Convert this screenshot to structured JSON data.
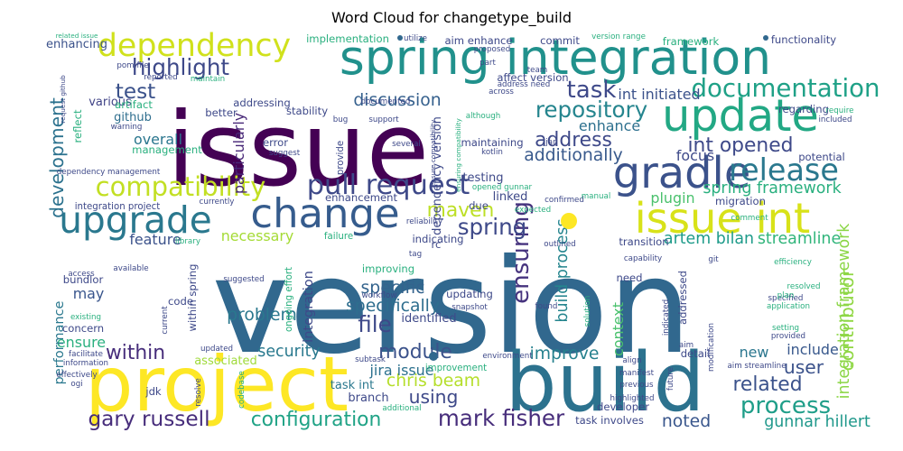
{
  "title": "Word Cloud for changetype_build",
  "chart_data": {
    "type": "wordcloud",
    "title": "Word Cloud for changetype_build",
    "colormap": "viridis",
    "background": "#ffffff",
    "words": [
      {
        "text": "version",
        "size": 100,
        "color": "#31688e"
      },
      {
        "text": "issue",
        "size": 78,
        "color": "#440154"
      },
      {
        "text": "build",
        "size": 62,
        "color": "#2c728e"
      },
      {
        "text": "project",
        "size": 58,
        "color": "#fde725"
      },
      {
        "text": "spring integration",
        "size": 37,
        "color": "#21918c"
      },
      {
        "text": "update",
        "size": 34,
        "color": "#22a884"
      },
      {
        "text": "gradle",
        "size": 33,
        "color": "#3b528b"
      },
      {
        "text": "issue int",
        "size": 32,
        "color": "#d8e219"
      },
      {
        "text": "change",
        "size": 31,
        "color": "#365c8d"
      },
      {
        "text": "upgrade",
        "size": 28,
        "color": "#2a788e"
      },
      {
        "text": "dependency",
        "size": 24,
        "color": "#d0e11c"
      },
      {
        "text": "release",
        "size": 23,
        "color": "#2a788e"
      },
      {
        "text": "pull request",
        "size": 21,
        "color": "#3e4989"
      },
      {
        "text": "compatibility",
        "size": 20,
        "color": "#c2df23"
      },
      {
        "text": "documentation",
        "size": 19,
        "color": "#1fa187"
      },
      {
        "text": "ensuring",
        "size": 18,
        "color": "#46337e"
      },
      {
        "text": "process",
        "size": 18,
        "color": "#1f9e89"
      },
      {
        "text": "task",
        "size": 18,
        "color": "#3e4989"
      },
      {
        "text": "highlight",
        "size": 17,
        "color": "#3e4989"
      },
      {
        "text": "repository",
        "size": 17,
        "color": "#25858e"
      },
      {
        "text": "spring",
        "size": 17,
        "color": "#3e4989"
      },
      {
        "text": "file",
        "size": 17,
        "color": "#3e4989"
      },
      {
        "text": "mark fisher",
        "size": 17,
        "color": "#472d7b"
      },
      {
        "text": "gary russell",
        "size": 16,
        "color": "#472d7b"
      },
      {
        "text": "test",
        "size": 16,
        "color": "#3b528b"
      },
      {
        "text": "int opened",
        "size": 15,
        "color": "#3e4989"
      },
      {
        "text": "within",
        "size": 15,
        "color": "#472d7b"
      },
      {
        "text": "module",
        "size": 15,
        "color": "#3b528b"
      },
      {
        "text": "configuration",
        "size": 15,
        "color": "#20a386"
      },
      {
        "text": "related",
        "size": 15,
        "color": "#3b528b"
      },
      {
        "text": "maven",
        "size": 15,
        "color": "#bddf26"
      },
      {
        "text": "address",
        "size": 15,
        "color": "#3e4989"
      },
      {
        "text": "development",
        "size": 14,
        "color": "#2c728e"
      },
      {
        "text": "contributor",
        "size": 14,
        "color": "#90d743"
      },
      {
        "text": "user",
        "size": 14,
        "color": "#3b528b"
      },
      {
        "text": "using",
        "size": 14,
        "color": "#3e4989"
      },
      {
        "text": "chris beam",
        "size": 13,
        "color": "#b5de2b"
      },
      {
        "text": "specific",
        "size": 13,
        "color": "#33638d"
      },
      {
        "text": "specifically",
        "size": 13,
        "color": "#2e6e8e"
      },
      {
        "text": "problem",
        "size": 13,
        "color": "#2a788e"
      },
      {
        "text": "discussion",
        "size": 13,
        "color": "#35608d"
      },
      {
        "text": "additionally",
        "size": 13,
        "color": "#38598c"
      },
      {
        "text": "improve",
        "size": 13,
        "color": "#26818e"
      },
      {
        "text": "noted",
        "size": 13,
        "color": "#39568c"
      },
      {
        "text": "gunnar hillert",
        "size": 12,
        "color": "#1f988b"
      },
      {
        "text": "spring framework",
        "size": 12,
        "color": "#2ab07f"
      },
      {
        "text": "artem bilan",
        "size": 12,
        "color": "#1e9b8a"
      },
      {
        "text": "streamline",
        "size": 12,
        "color": "#31b57b"
      },
      {
        "text": "integration framework",
        "size": 12,
        "color": "#8bd646"
      },
      {
        "text": "build process",
        "size": 12,
        "color": "#25858e"
      },
      {
        "text": "security",
        "size": 12,
        "color": "#29798e"
      },
      {
        "text": "jira issue",
        "size": 11,
        "color": "#2c718e"
      },
      {
        "text": "int initiated",
        "size": 11,
        "color": "#3b528b"
      },
      {
        "text": "enhance",
        "size": 11,
        "color": "#2d708e"
      },
      {
        "text": "overall",
        "size": 11,
        "color": "#2a768e"
      },
      {
        "text": "particularly",
        "size": 11,
        "color": "#482878"
      },
      {
        "text": "focus",
        "size": 11,
        "color": "#3e4a89"
      },
      {
        "text": "context",
        "size": 11,
        "color": "#4ac16d"
      },
      {
        "text": "include",
        "size": 11,
        "color": "#38588c"
      },
      {
        "text": "new",
        "size": 11,
        "color": "#2a768e"
      },
      {
        "text": "may",
        "size": 11,
        "color": "#39558c"
      },
      {
        "text": "feature",
        "size": 11,
        "color": "#3b528b"
      },
      {
        "text": "necessary",
        "size": 11,
        "color": "#a5db36"
      },
      {
        "text": "plugin",
        "size": 11,
        "color": "#4ac16d"
      },
      {
        "text": "ensure",
        "size": 11,
        "color": "#2ab07f"
      },
      {
        "text": "performance",
        "size": 10,
        "color": "#2a788e"
      },
      {
        "text": "integration",
        "size": 10,
        "color": "#3e4989"
      },
      {
        "text": "dependency version",
        "size": 9,
        "color": "#3e4989"
      },
      {
        "text": "various",
        "size": 9,
        "color": "#414487"
      },
      {
        "text": "enhancing",
        "size": 9,
        "color": "#3b528b"
      },
      {
        "text": "associated",
        "size": 9,
        "color": "#9fda3a"
      },
      {
        "text": "github",
        "size": 9,
        "color": "#2e6e8e"
      },
      {
        "text": "task int",
        "size": 9,
        "color": "#2a788e"
      },
      {
        "text": "branch",
        "size": 9,
        "color": "#3e4989"
      },
      {
        "text": "identified",
        "size": 9,
        "color": "#3e4989"
      },
      {
        "text": "testing",
        "size": 9,
        "color": "#3e4989"
      },
      {
        "text": "linked",
        "size": 9,
        "color": "#3e4989"
      },
      {
        "text": "addressed",
        "size": 8,
        "color": "#3e4989"
      },
      {
        "text": "detail",
        "size": 8,
        "color": "#3e4989"
      },
      {
        "text": "updating",
        "size": 8,
        "color": "#3e4989"
      },
      {
        "text": "indicating",
        "size": 8,
        "color": "#3e4989"
      },
      {
        "text": "improving",
        "size": 8,
        "color": "#2ab07f"
      },
      {
        "text": "enhancement",
        "size": 8,
        "color": "#3e4989"
      },
      {
        "text": "maintaining",
        "size": 8,
        "color": "#3e4989"
      },
      {
        "text": "stability",
        "size": 8,
        "color": "#3e4989"
      },
      {
        "text": "addressing",
        "size": 8,
        "color": "#3e4989"
      },
      {
        "text": "better",
        "size": 8,
        "color": "#3e4989"
      },
      {
        "text": "error",
        "size": 8,
        "color": "#3e4989"
      },
      {
        "text": "bundlor",
        "size": 8,
        "color": "#3e4989"
      },
      {
        "text": "concern",
        "size": 8,
        "color": "#3e4989"
      },
      {
        "text": "code",
        "size": 8,
        "color": "#3e4989"
      },
      {
        "text": "jdk",
        "size": 8,
        "color": "#3e4989"
      },
      {
        "text": "rc",
        "size": 8,
        "color": "#3e4989"
      },
      {
        "text": "due",
        "size": 8,
        "color": "#3e4989"
      },
      {
        "text": "need",
        "size": 8,
        "color": "#3e4989"
      },
      {
        "text": "transition",
        "size": 8,
        "color": "#3e4989"
      },
      {
        "text": "migration",
        "size": 8,
        "color": "#3e4989"
      },
      {
        "text": "regarding",
        "size": 8,
        "color": "#3e4989"
      },
      {
        "text": "potential",
        "size": 8,
        "color": "#3e4989"
      },
      {
        "text": "developer",
        "size": 8,
        "color": "#3e4989"
      },
      {
        "text": "task involves",
        "size": 8,
        "color": "#3e4989"
      },
      {
        "text": "functionality",
        "size": 8,
        "color": "#3e4989"
      },
      {
        "text": "framework",
        "size": 8,
        "color": "#2ab07f"
      },
      {
        "text": "implementation",
        "size": 8,
        "color": "#2ab07f"
      },
      {
        "text": "aim enhance",
        "size": 8,
        "color": "#3e4989"
      },
      {
        "text": "commit",
        "size": 8,
        "color": "#3e4989"
      },
      {
        "text": "affect version",
        "size": 8,
        "color": "#3e4989"
      },
      {
        "text": "management",
        "size": 8,
        "color": "#2ab07f"
      },
      {
        "text": "reflect",
        "size": 8,
        "color": "#2ab07f"
      },
      {
        "text": "artifact",
        "size": 8,
        "color": "#2ab07f"
      },
      {
        "text": "improvement",
        "size": 7,
        "color": "#2ab07f"
      },
      {
        "text": "within spring",
        "size": 8,
        "color": "#3e4989"
      },
      {
        "text": "ongoing effort",
        "size": 7,
        "color": "#2ab07f"
      },
      {
        "text": "failure",
        "size": 7,
        "color": "#2ab07f"
      },
      {
        "text": "integration project",
        "size": 7,
        "color": "#3e4989"
      },
      {
        "text": "dependency management",
        "size": 6,
        "color": "#3e4989"
      },
      {
        "text": "pom file",
        "size": 6,
        "color": "#3e4989"
      },
      {
        "text": "suggested",
        "size": 6,
        "color": "#3e4989"
      },
      {
        "text": "available",
        "size": 6,
        "color": "#3e4989"
      },
      {
        "text": "facilitate",
        "size": 6,
        "color": "#3e4989"
      },
      {
        "text": "information",
        "size": 6,
        "color": "#3e4989"
      },
      {
        "text": "effectively",
        "size": 6,
        "color": "#3e4989"
      },
      {
        "text": "existing",
        "size": 6,
        "color": "#2ab07f"
      },
      {
        "text": "access",
        "size": 6,
        "color": "#3e4989"
      },
      {
        "text": "updated",
        "size": 6,
        "color": "#3e4989"
      },
      {
        "text": "subtask",
        "size": 6,
        "color": "#3e4989"
      },
      {
        "text": "environment",
        "size": 6,
        "color": "#3e4989"
      },
      {
        "text": "workflow",
        "size": 6,
        "color": "#3e4989"
      },
      {
        "text": "snapshot",
        "size": 6,
        "color": "#3e4989"
      },
      {
        "text": "found",
        "size": 6,
        "color": "#3e4989"
      },
      {
        "text": "outlined",
        "size": 6,
        "color": "#3e4989"
      },
      {
        "text": "capability",
        "size": 6,
        "color": "#3e4989"
      },
      {
        "text": "indicated",
        "size": 6,
        "color": "#3e4989"
      },
      {
        "text": "solution",
        "size": 6,
        "color": "#2ab07f"
      },
      {
        "text": "manifest",
        "size": 6,
        "color": "#3e4989"
      },
      {
        "text": "previous",
        "size": 6,
        "color": "#3e4989"
      },
      {
        "text": "highlighted",
        "size": 6,
        "color": "#3e4989"
      },
      {
        "text": "future",
        "size": 6,
        "color": "#3e4989"
      },
      {
        "text": "modification",
        "size": 6,
        "color": "#3e4989"
      },
      {
        "text": "aim streamline",
        "size": 6,
        "color": "#3e4989"
      },
      {
        "text": "specified",
        "size": 6,
        "color": "#3e4989"
      },
      {
        "text": "resolved",
        "size": 6,
        "color": "#2ab07f"
      },
      {
        "text": "plan",
        "size": 6,
        "color": "#2ab07f"
      },
      {
        "text": "application",
        "size": 6,
        "color": "#2ab07f"
      },
      {
        "text": "setting",
        "size": 6,
        "color": "#2ab07f"
      },
      {
        "text": "provided",
        "size": 6,
        "color": "#3e4989"
      },
      {
        "text": "comment",
        "size": 6,
        "color": "#2ab07f"
      },
      {
        "text": "git",
        "size": 6,
        "color": "#3e4989"
      },
      {
        "text": "confirmed",
        "size": 6,
        "color": "#3e4989"
      },
      {
        "text": "manual",
        "size": 6,
        "color": "#2ab07f"
      },
      {
        "text": "expected",
        "size": 6,
        "color": "#2ab07f"
      },
      {
        "text": "reliability",
        "size": 6,
        "color": "#3e4989"
      },
      {
        "text": "library",
        "size": 6,
        "color": "#2ab07f"
      },
      {
        "text": "currently",
        "size": 6,
        "color": "#3e4989"
      },
      {
        "text": "provide",
        "size": 7,
        "color": "#3e4989"
      },
      {
        "text": "suggest",
        "size": 6,
        "color": "#3e4989"
      },
      {
        "text": "several",
        "size": 6,
        "color": "#3e4989"
      },
      {
        "text": "kotlin",
        "size": 6,
        "color": "#3e4989"
      },
      {
        "text": "ensure compatibility",
        "size": 5,
        "color": "#3e4989"
      },
      {
        "text": "documented",
        "size": 6,
        "color": "#3e4989"
      },
      {
        "text": "support",
        "size": 6,
        "color": "#3e4989"
      },
      {
        "text": "across",
        "size": 6,
        "color": "#3e4989"
      },
      {
        "text": "although",
        "size": 6,
        "color": "#2ab07f"
      },
      {
        "text": "bug",
        "size": 6,
        "color": "#3e4989"
      },
      {
        "text": "warning",
        "size": 6,
        "color": "#3e4989"
      },
      {
        "text": "maintain",
        "size": 6,
        "color": "#2ab07f"
      },
      {
        "text": "reported",
        "size": 6,
        "color": "#3e4989"
      },
      {
        "text": "related issue",
        "size": 5,
        "color": "#2ab07f"
      },
      {
        "text": "request github",
        "size": 5,
        "color": "#3e4989"
      },
      {
        "text": "utilize",
        "size": 6,
        "color": "#3e4989"
      },
      {
        "text": "proposed",
        "size": 6,
        "color": "#3e4989"
      },
      {
        "text": "part",
        "size": 6,
        "color": "#3e4989"
      },
      {
        "text": "version range",
        "size": 6,
        "color": "#2ab07f"
      },
      {
        "text": "team",
        "size": 6,
        "color": "#3e4989"
      },
      {
        "text": "address need",
        "size": 6,
        "color": "#3e4989"
      },
      {
        "text": "require",
        "size": 6,
        "color": "#2ab07f"
      },
      {
        "text": "included",
        "size": 6,
        "color": "#3e4989"
      },
      {
        "text": "efficiency",
        "size": 6,
        "color": "#2ab07f"
      },
      {
        "text": "ensuring compatibility",
        "size": 5,
        "color": "#2ab07f"
      },
      {
        "text": "align",
        "size": 6,
        "color": "#3e4989"
      },
      {
        "text": "ogi",
        "size": 6,
        "color": "#3e4989"
      },
      {
        "text": "current",
        "size": 6,
        "color": "#3e4989"
      },
      {
        "text": "resolve",
        "size": 6,
        "color": "#3e4989"
      },
      {
        "text": "codebase",
        "size": 6,
        "color": "#2ab07f"
      },
      {
        "text": "additional",
        "size": 6,
        "color": "#2ab07f"
      },
      {
        "text": "opened gunnar",
        "size": 6,
        "color": "#2ab07f"
      },
      {
        "text": "jar",
        "size": 6,
        "color": "#3e4989"
      },
      {
        "text": "tag",
        "size": 6,
        "color": "#3e4989"
      },
      {
        "text": "aim",
        "size": 6,
        "color": "#3e4989"
      }
    ]
  }
}
